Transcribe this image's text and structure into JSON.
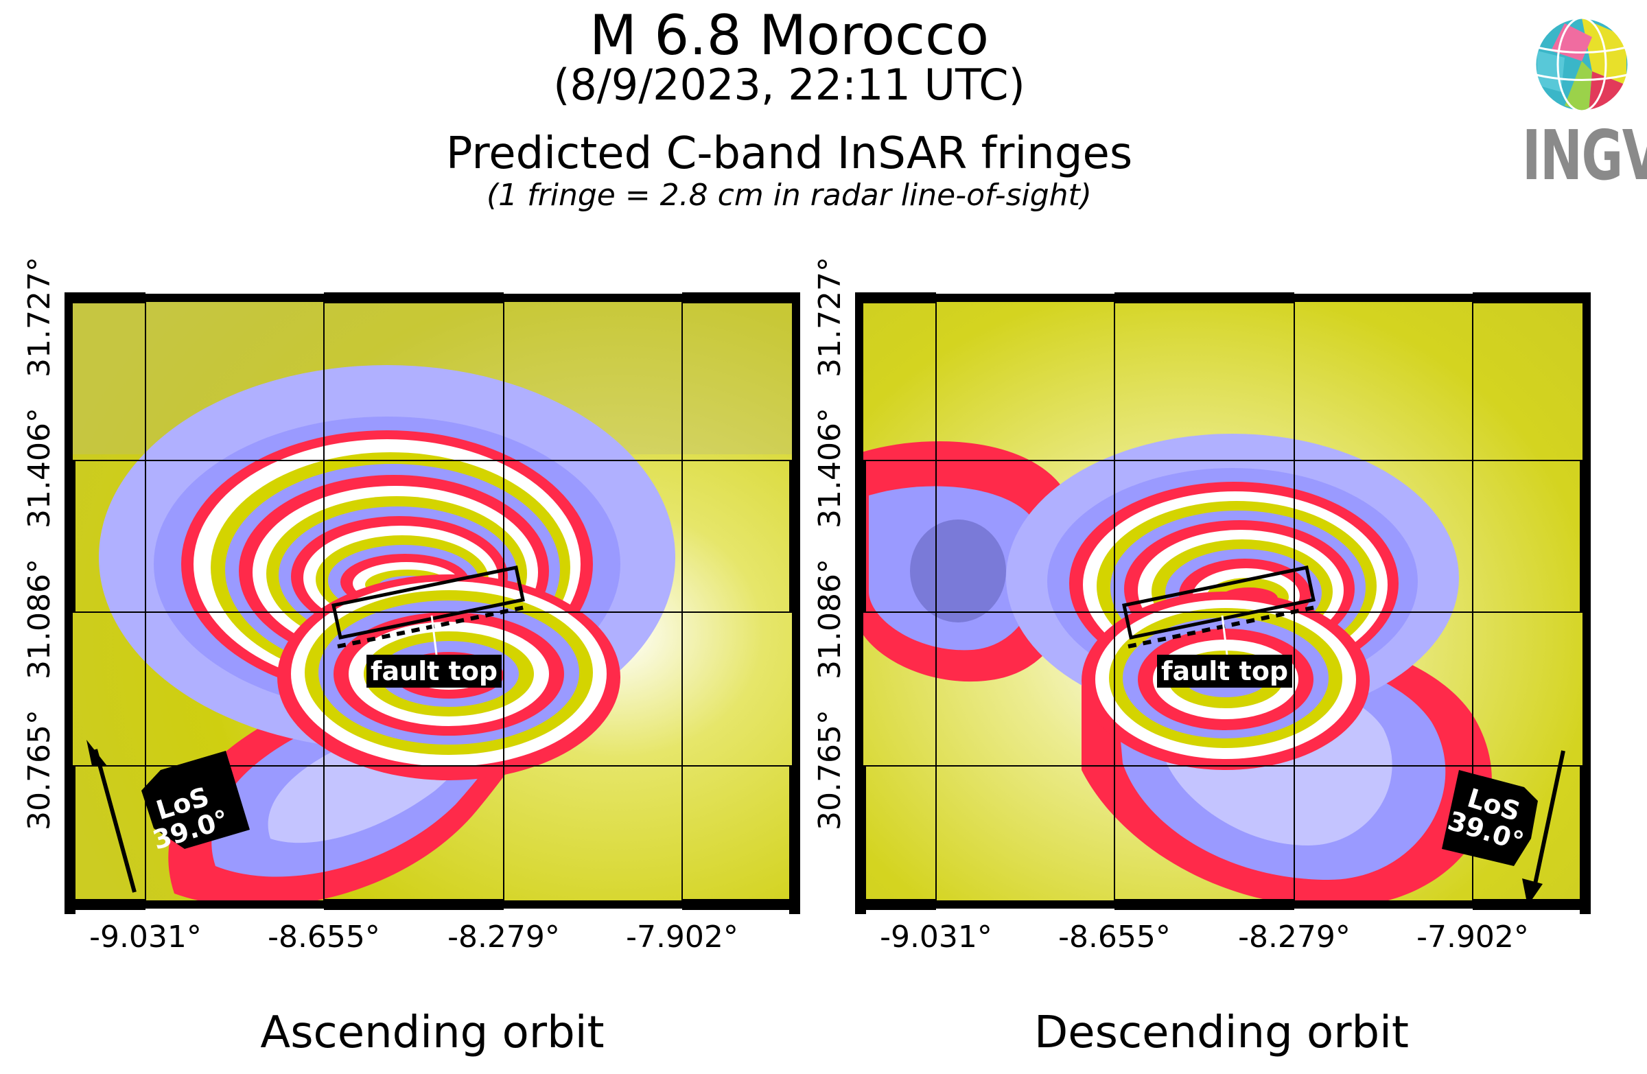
{
  "header": {
    "title": "M 6.8 Morocco",
    "date": "(8/9/2023, 22:11 UTC)",
    "subtitle": "Predicted C-band InSAR fringes",
    "note": "(1 fringe = 2.8 cm in radar line-of-sight)"
  },
  "logo": {
    "text": "INGV",
    "icon": "ingv-globe-logo"
  },
  "axes": {
    "y_ticks": [
      "30.765°",
      "31.086°",
      "31.406°",
      "31.727°"
    ],
    "x_ticks": [
      "-9.031°",
      "-8.655°",
      "-8.279°",
      "-7.902°"
    ]
  },
  "panels": [
    {
      "label": "Ascending orbit",
      "fault_label": "fault top",
      "los_line1": "LoS",
      "los_line2": "39.0°",
      "los_direction": "north-up-left"
    },
    {
      "label": "Descending orbit",
      "fault_label": "fault top",
      "los_line1": "LoS",
      "los_line2": "39.0°",
      "los_direction": "south-down-right"
    }
  ],
  "colors": {
    "fringe_red": "#ff2a4a",
    "fringe_blue": "#9a9aff",
    "fringe_yellow": "#d4d400",
    "fringe_white": "#ffffff",
    "frame": "#000000"
  }
}
